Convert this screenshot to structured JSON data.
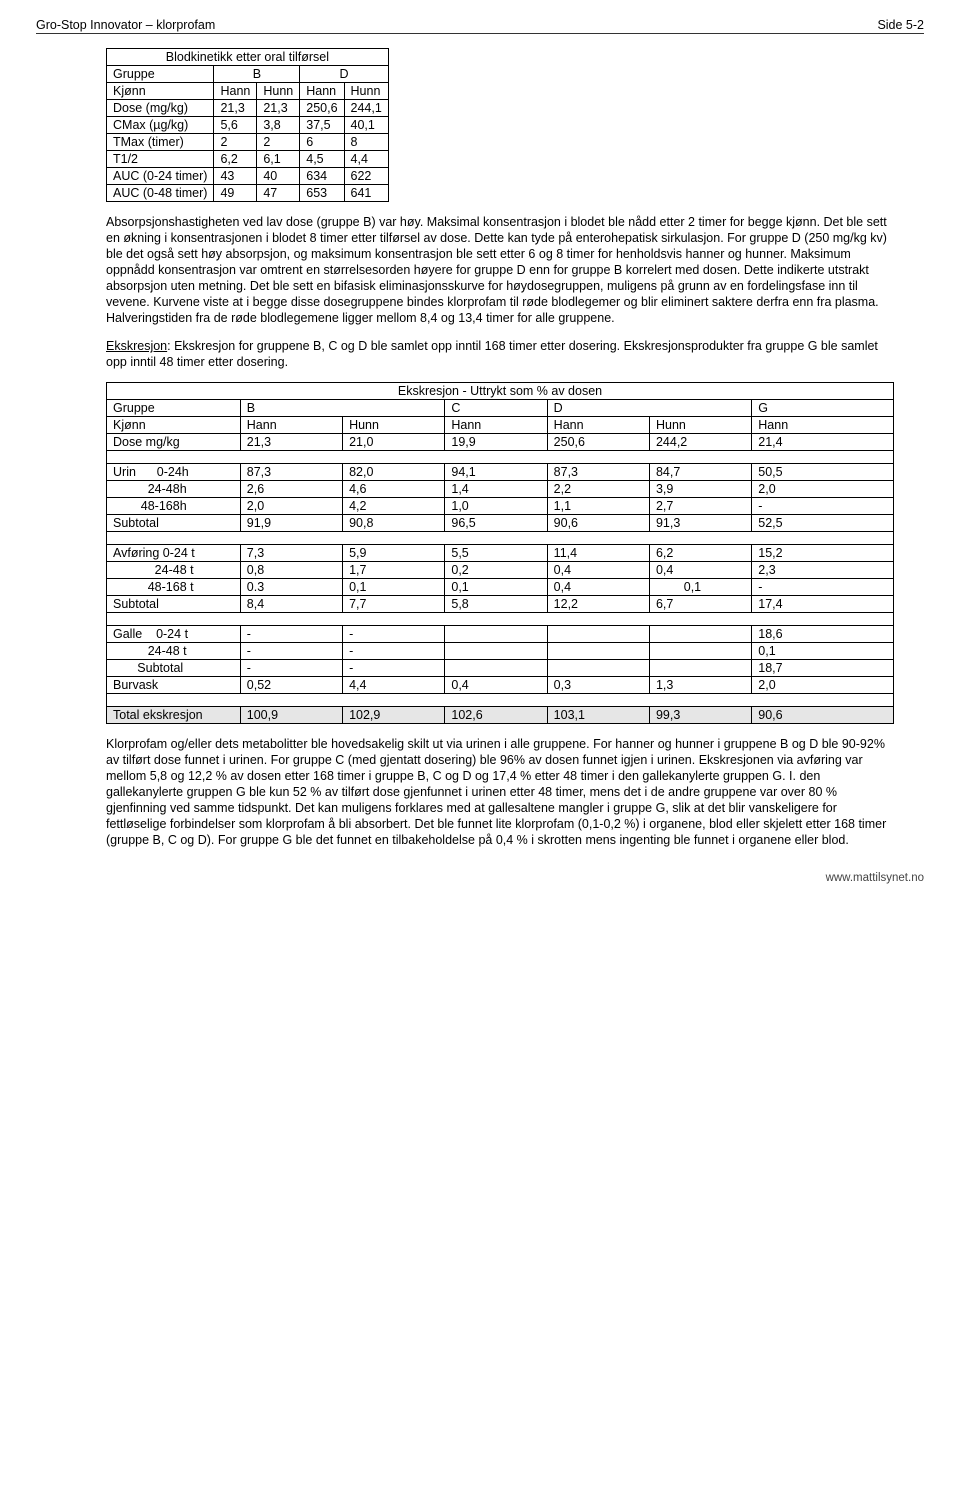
{
  "header": {
    "left": "Gro-Stop Innovator – klorprofam",
    "right": "Side 5-2"
  },
  "table1": {
    "title": "Blodkinetikk etter oral tilførsel",
    "group_label": "Gruppe",
    "groups": [
      "B",
      "D"
    ],
    "sex_label": "Kjønn",
    "sexes": [
      "Hann",
      "Hunn",
      "Hann",
      "Hunn"
    ],
    "rows": [
      {
        "label": "Dose (mg/kg)",
        "v": [
          "21,3",
          "21,3",
          "250,6",
          "244,1"
        ]
      },
      {
        "label": "CMax (µg/kg)",
        "v": [
          "5,6",
          "3,8",
          "37,5",
          "40,1"
        ]
      },
      {
        "label": "TMax (timer)",
        "v": [
          "2",
          "2",
          "6",
          "8"
        ]
      },
      {
        "label": "T1/2",
        "v": [
          "6,2",
          "6,1",
          "4,5",
          "4,4"
        ]
      },
      {
        "label": "AUC (0-24 timer)",
        "v": [
          "43",
          "40",
          "634",
          "622"
        ]
      },
      {
        "label": "AUC (0-48 timer)",
        "v": [
          "49",
          "47",
          "653",
          "641"
        ]
      }
    ]
  },
  "para1": "Absorpsjonshastigheten ved lav dose (gruppe B) var høy. Maksimal konsentrasjon i blodet ble nådd etter 2 timer for begge kjønn. Det ble sett en økning i konsentrasjonen i blodet 8 timer etter tilførsel av dose. Dette kan tyde på enterohepatisk sirkulasjon. For gruppe D (250 mg/kg kv) ble det også sett høy absorpsjon, og maksimum konsentrasjon ble sett etter 6 og 8 timer for henholdsvis hanner og hunner. Maksimum oppnådd konsentrasjon var omtrent en størrelsesorden høyere for gruppe D enn for gruppe B korrelert med dosen. Dette indikerte utstrakt absorpsjon uten metning. Det ble sett en bifasisk eliminasjonsskurve for høydosegruppen, muligens på grunn av en fordelingsfase inn til vevene. Kurvene viste at i begge disse dosegruppene bindes klorprofam til røde blodlegemer og blir eliminert saktere derfra enn fra plasma. Halveringstiden fra de røde blodlegemene ligger mellom 8,4 og 13,4 timer for alle gruppene.",
  "para2_label": "Ekskresjon",
  "para2": ": Ekskresjon for gruppene B, C og D ble samlet opp inntil 168 timer etter dosering. Ekskresjonsprodukter fra gruppe G ble samlet opp inntil 48 timer etter dosering.",
  "table2": {
    "title": "Ekskresjon - Uttrykt som % av dosen",
    "group_label": "Gruppe",
    "groups": [
      "B",
      "C",
      "D",
      "G"
    ],
    "sex_label": "Kjønn",
    "sexes": [
      "Hann",
      "Hunn",
      "Hann",
      "Hann",
      "Hunn",
      "Hann"
    ],
    "dose_label": "Dose mg/kg",
    "doses": [
      "21,3",
      "21,0",
      "19,9",
      "250,6",
      "244,2",
      "21,4"
    ],
    "sections": [
      {
        "rows": [
          {
            "label": "Urin      0-24h",
            "v": [
              "87,3",
              "82,0",
              "94,1",
              "87,3",
              "84,7",
              "50,5"
            ]
          },
          {
            "label": "          24-48h",
            "v": [
              "2,6",
              "4,6",
              "1,4",
              "2,2",
              "3,9",
              "2,0"
            ]
          },
          {
            "label": "        48-168h",
            "v": [
              "2,0",
              "4,2",
              "1,0",
              "1,1",
              "2,7",
              "-"
            ]
          }
        ],
        "subtotal": {
          "label": "Subtotal",
          "v": [
            "91,9",
            "90,8",
            "96,5",
            "90,6",
            "91,3",
            "52,5"
          ]
        }
      },
      {
        "rows": [
          {
            "label": "Avføring 0-24 t",
            "v": [
              "7,3",
              "5,9",
              "5,5",
              "11,4",
              "6,2",
              "15,2"
            ]
          },
          {
            "label": "            24-48 t",
            "v": [
              "0,8",
              "1,7",
              "0,2",
              "0,4",
              "0,4",
              "2,3"
            ]
          },
          {
            "label": "          48-168 t",
            "v": [
              "0.3",
              "0,1",
              "0,1",
              "0,4",
              "        0,1",
              "-"
            ]
          }
        ],
        "subtotal": {
          "label": "Subtotal",
          "v": [
            "8,4",
            "7,7",
            "5,8",
            "12,2",
            "6,7",
            "17,4"
          ]
        }
      },
      {
        "rows": [
          {
            "label": "Galle    0-24 t",
            "v": [
              "-",
              "-",
              "",
              "",
              "",
              "18,6"
            ]
          },
          {
            "label": "          24-48 t",
            "v": [
              "-",
              "-",
              "",
              "",
              "",
              "0,1"
            ]
          },
          {
            "label": "       Subtotal",
            "v": [
              "-",
              "-",
              "",
              "",
              "",
              "18,7"
            ]
          }
        ],
        "subtotal": {
          "label": "Burvask",
          "v": [
            "0,52",
            "4,4",
            "0,4",
            "0,3",
            "1,3",
            "2,0"
          ]
        }
      }
    ],
    "total": {
      "label": "Total ekskresjon",
      "v": [
        "100,9",
        "102,9",
        "102,6",
        "103,1",
        "99,3",
        "90,6"
      ]
    }
  },
  "para3": "Klorprofam og/eller dets metabolitter ble hovedsakelig skilt ut via urinen i alle gruppene. For hanner og hunner i gruppene B og D ble 90-92% av tilført dose funnet i urinen. For gruppe C (med gjentatt dosering) ble 96% av dosen funnet igjen i urinen. Ekskresjonen via avføring var mellom 5,8 og 12,2 % av dosen etter 168 timer i gruppe B, C og D og 17,4 % etter 48 timer i den gallekanylerte gruppen G. I. den gallekanylerte gruppen G ble kun 52 % av tilført dose gjenfunnet i urinen etter 48 timer, mens det i de andre gruppene var over 80 % gjenfinning ved samme tidspunkt. Det kan muligens forklares med at gallesaltene mangler i gruppe G, slik at det blir vanskeligere for fettløselige forbindelser som klorprofam å bli absorbert. Det ble funnet lite klorprofam (0,1-0,2 %) i organene, blod eller skjelett etter 168 timer (gruppe B, C og D). For gruppe G ble det funnet en tilbakeholdelse på 0,4 % i skrotten mens ingenting ble funnet i organene eller blod.",
  "footer": "www.mattilsynet.no"
}
